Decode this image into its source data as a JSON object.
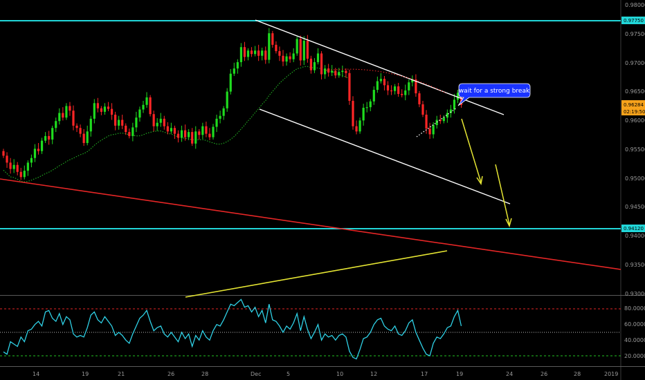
{
  "colors": {
    "background": "#000000",
    "up": "#1fdc1f",
    "down": "#ff2626",
    "cyan": "#22d7d9",
    "trendline_red": "#e62626",
    "yellow": "#e6e633",
    "rsi": "#2fd1e6",
    "callout": "#1a33ff",
    "ma": "#22b422",
    "tag_price": "#f7a21b"
  },
  "annotation": {
    "text": "wait for a strong break"
  },
  "chart_data": [
    {
      "type": "candlestick",
      "yticks": [
        "0.98000",
        "0.97500",
        "0.97000",
        "0.96500",
        "0.96000",
        "0.95500",
        "0.95000",
        "0.94500",
        "0.94000",
        "0.93500",
        "0.93000"
      ],
      "ylim": [
        0.93,
        0.98
      ],
      "x_labels": [
        "14",
        "19",
        "21",
        "26",
        "28",
        "Dec",
        "5",
        "10",
        "12",
        "17",
        "19",
        "24",
        "26",
        "28",
        "2019"
      ],
      "price_tags": [
        {
          "text": "0.97750",
          "value": 0.9775,
          "color": "cyan"
        },
        {
          "text": "0.96284",
          "value": 0.96284,
          "color": "orange"
        },
        {
          "text": "02:19:50",
          "value": 0.96145,
          "color": "orange"
        },
        {
          "text": "0.94120",
          "value": 0.9412,
          "color": "cyan"
        }
      ],
      "horizontal_levels": [
        0.9775,
        0.9412
      ],
      "series_close": [
        0.954,
        0.9528,
        0.9517,
        0.9524,
        0.9512,
        0.9503,
        0.9514,
        0.9528,
        0.9536,
        0.9552,
        0.9548,
        0.9566,
        0.9574,
        0.9568,
        0.9588,
        0.96,
        0.9614,
        0.9606,
        0.9626,
        0.9618,
        0.9592,
        0.9588,
        0.9578,
        0.9562,
        0.9582,
        0.9604,
        0.9631,
        0.9622,
        0.9616,
        0.9625,
        0.9621,
        0.9611,
        0.9592,
        0.9602,
        0.9592,
        0.9581,
        0.9574,
        0.9589,
        0.9606,
        0.962,
        0.9628,
        0.9641,
        0.9612,
        0.9591,
        0.9597,
        0.9604,
        0.9591,
        0.9582,
        0.9588,
        0.9578,
        0.9571,
        0.9584,
        0.9572,
        0.9581,
        0.9561,
        0.9582,
        0.9576,
        0.9591,
        0.9578,
        0.9572,
        0.959,
        0.9604,
        0.9609,
        0.9622,
        0.9651,
        0.9682,
        0.9691,
        0.9702,
        0.9728,
        0.9711,
        0.9722,
        0.9716,
        0.9722,
        0.9713,
        0.9722,
        0.9706,
        0.9752,
        0.9732,
        0.9721,
        0.9713,
        0.9703,
        0.9712,
        0.9707,
        0.9717,
        0.9742,
        0.9705,
        0.9739,
        0.9708,
        0.9688,
        0.9702,
        0.9717,
        0.9681,
        0.9691,
        0.9684,
        0.9687,
        0.9679,
        0.9685,
        0.9687,
        0.9683,
        0.9635,
        0.9591,
        0.9582,
        0.9601,
        0.9623,
        0.9624,
        0.9634,
        0.9654,
        0.9669,
        0.9673,
        0.9662,
        0.9653,
        0.9652,
        0.966,
        0.9647,
        0.9645,
        0.9653,
        0.9667,
        0.9672,
        0.9648,
        0.9629,
        0.9611,
        0.9587,
        0.9577,
        0.9593,
        0.9602,
        0.96,
        0.9606,
        0.9614,
        0.962,
        0.9637,
        0.9649,
        0.9628
      ],
      "indicator": {
        "name": "RSI",
        "yticks": [
          "80.0000",
          "60.0000",
          "40.0000",
          "20.0000"
        ],
        "levels": [
          80,
          50,
          20
        ],
        "ylim": [
          10,
          95
        ],
        "values": [
          25,
          22,
          38,
          35,
          32,
          44,
          38,
          52,
          54,
          60,
          64,
          58,
          76,
          78,
          68,
          64,
          74,
          60,
          70,
          66,
          48,
          44,
          46,
          44,
          56,
          72,
          76,
          66,
          62,
          70,
          64,
          58,
          46,
          50,
          46,
          40,
          36,
          48,
          58,
          68,
          72,
          78,
          64,
          52,
          56,
          58,
          48,
          44,
          50,
          44,
          38,
          50,
          42,
          48,
          32,
          46,
          40,
          52,
          44,
          40,
          52,
          60,
          58,
          66,
          76,
          86,
          84,
          88,
          92,
          82,
          84,
          76,
          82,
          70,
          78,
          62,
          86,
          66,
          64,
          58,
          50,
          58,
          54,
          62,
          74,
          52,
          70,
          54,
          42,
          50,
          60,
          40,
          48,
          44,
          46,
          40,
          46,
          48,
          44,
          26,
          18,
          16,
          28,
          42,
          44,
          50,
          60,
          66,
          68,
          58,
          54,
          52,
          58,
          48,
          46,
          52,
          62,
          66,
          50,
          40,
          30,
          22,
          20,
          36,
          44,
          42,
          48,
          56,
          58,
          70,
          78,
          58
        ]
      }
    }
  ]
}
